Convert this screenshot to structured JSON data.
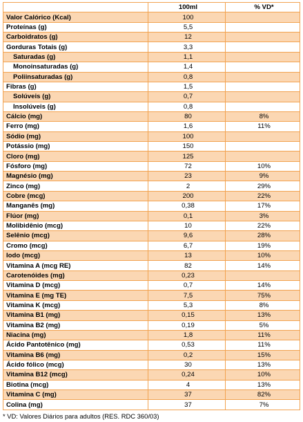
{
  "headers": {
    "label": "",
    "per_100ml": "100ml",
    "vd": "% VD*"
  },
  "colors": {
    "border": "#f2a24f",
    "band": "#fbd7b3"
  },
  "rows": [
    {
      "label": "Valor Calórico (Kcal)",
      "value": "100",
      "vd": "",
      "indent": false
    },
    {
      "label": "Proteínas (g)",
      "value": "5,5",
      "vd": "",
      "indent": false
    },
    {
      "label": "Carboidratos (g)",
      "value": "12",
      "vd": "",
      "indent": false
    },
    {
      "label": "Gorduras Totais (g)",
      "value": "3,3",
      "vd": "",
      "indent": false
    },
    {
      "label": "Saturadas (g)",
      "value": "1,1",
      "vd": "",
      "indent": true
    },
    {
      "label": "Monoinsaturadas (g)",
      "value": "1,4",
      "vd": "",
      "indent": true
    },
    {
      "label": "Poliinsaturadas (g)",
      "value": "0,8",
      "vd": "",
      "indent": true
    },
    {
      "label": "Fibras (g)",
      "value": "1,5",
      "vd": "",
      "indent": false
    },
    {
      "label": "Solúveis (g)",
      "value": "0,7",
      "vd": "",
      "indent": true
    },
    {
      "label": "Insolúveis (g)",
      "value": "0,8",
      "vd": "",
      "indent": true
    },
    {
      "label": "Cálcio (mg)",
      "value": "80",
      "vd": "8%",
      "indent": false
    },
    {
      "label": "Ferro (mg)",
      "value": "1,6",
      "vd": "11%",
      "indent": false
    },
    {
      "label": "Sódio (mg)",
      "value": "100",
      "vd": "",
      "indent": false
    },
    {
      "label": "Potássio (mg)",
      "value": "150",
      "vd": "",
      "indent": false
    },
    {
      "label": "Cloro (mg)",
      "value": "125",
      "vd": "",
      "indent": false
    },
    {
      "label": "Fósforo (mg)",
      "value": "72",
      "vd": "10%",
      "indent": false
    },
    {
      "label": "Magnésio (mg)",
      "value": "23",
      "vd": "9%",
      "indent": false
    },
    {
      "label": "Zinco (mg)",
      "value": "2",
      "vd": "29%",
      "indent": false
    },
    {
      "label": "Cobre (mcg)",
      "value": "200",
      "vd": "22%",
      "indent": false
    },
    {
      "label": "Manganês (mg)",
      "value": "0,38",
      "vd": "17%",
      "indent": false
    },
    {
      "label": "Flúor (mg)",
      "value": "0,1",
      "vd": "3%",
      "indent": false
    },
    {
      "label": "Molibidênio (mcg)",
      "value": "10",
      "vd": "22%",
      "indent": false
    },
    {
      "label": "Selênio (mcg)",
      "value": "9,6",
      "vd": "28%",
      "indent": false
    },
    {
      "label": "Cromo (mcg)",
      "value": "6,7",
      "vd": "19%",
      "indent": false
    },
    {
      "label": "Iodo (mcg)",
      "value": "13",
      "vd": "10%",
      "indent": false
    },
    {
      "label": "Vitamina A (mcg RE)",
      "value": "82",
      "vd": "14%",
      "indent": false
    },
    {
      "label": "Carotenóides (mg)",
      "value": "0,23",
      "vd": "",
      "indent": false
    },
    {
      "label": "Vitamina D (mcg)",
      "value": "0,7",
      "vd": "14%",
      "indent": false
    },
    {
      "label": "Vitamina E (mg TE)",
      "value": "7,5",
      "vd": "75%",
      "indent": false
    },
    {
      "label": "Vitamina K (mcg)",
      "value": "5,3",
      "vd": "8%",
      "indent": false
    },
    {
      "label": "Vitamina B1 (mg)",
      "value": "0,15",
      "vd": "13%",
      "indent": false
    },
    {
      "label": "Vitamina B2 (mg)",
      "value": "0,19",
      "vd": "5%",
      "indent": false
    },
    {
      "label": "Niacina (mg)",
      "value": "1,8",
      "vd": "11%",
      "indent": false
    },
    {
      "label": "Ácido Pantotênico (mg)",
      "value": "0,53",
      "vd": "11%",
      "indent": false
    },
    {
      "label": "Vitamina B6 (mg)",
      "value": "0,2",
      "vd": "15%",
      "indent": false
    },
    {
      "label": "Ácido fólico (mcg)",
      "value": "30",
      "vd": "13%",
      "indent": false
    },
    {
      "label": "Vitamina B12 (mcg)",
      "value": "0,24",
      "vd": "10%",
      "indent": false
    },
    {
      "label": "Biotina (mcg)",
      "value": "4",
      "vd": "13%",
      "indent": false
    },
    {
      "label": "Vitamina C (mg)",
      "value": "37",
      "vd": "82%",
      "indent": false
    },
    {
      "label": "Colina (mg)",
      "value": "37",
      "vd": "7%",
      "indent": false
    }
  ],
  "footnote": "* VD: Valores Diários para adultos (RES. RDC 360/03)"
}
